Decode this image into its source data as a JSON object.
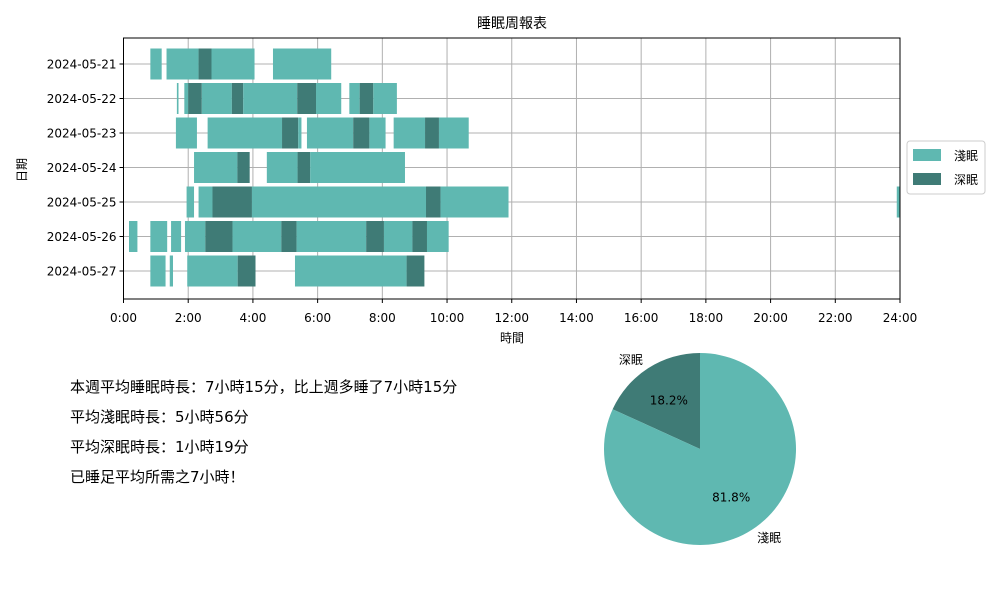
{
  "chart_data": [
    {
      "type": "timeline",
      "title": "睡眠周報表",
      "xlabel": "時間",
      "ylabel": "日期",
      "xlim": [
        0,
        24
      ],
      "x_ticks": [
        "0:00",
        "2:00",
        "4:00",
        "6:00",
        "8:00",
        "10:00",
        "12:00",
        "14:00",
        "16:00",
        "18:00",
        "20:00",
        "22:00",
        "24:00"
      ],
      "grid": true,
      "legend": {
        "position": "right",
        "items": [
          {
            "name": "淺眠",
            "color": "#5fb8b1"
          },
          {
            "name": "深眠",
            "color": "#3f7b76"
          }
        ]
      },
      "categories": [
        "2024-05-21",
        "2024-05-22",
        "2024-05-23",
        "2024-05-24",
        "2024-05-25",
        "2024-05-26",
        "2024-05-27"
      ],
      "rows": [
        {
          "date": "2024-05-21",
          "segments": [
            {
              "type": "淺眠",
              "start": 0.83,
              "end": 1.18
            },
            {
              "type": "淺眠",
              "start": 1.33,
              "end": 2.32
            },
            {
              "type": "深眠",
              "start": 2.32,
              "end": 2.72
            },
            {
              "type": "淺眠",
              "start": 2.72,
              "end": 4.05
            },
            {
              "type": "淺眠",
              "start": 4.62,
              "end": 6.42
            }
          ]
        },
        {
          "date": "2024-05-22",
          "segments": [
            {
              "type": "淺眠",
              "start": 1.65,
              "end": 1.7
            },
            {
              "type": "淺眠",
              "start": 1.88,
              "end": 2.0
            },
            {
              "type": "深眠",
              "start": 2.0,
              "end": 2.42
            },
            {
              "type": "淺眠",
              "start": 2.42,
              "end": 3.35
            },
            {
              "type": "深眠",
              "start": 3.35,
              "end": 3.7
            },
            {
              "type": "淺眠",
              "start": 3.7,
              "end": 5.37
            },
            {
              "type": "深眠",
              "start": 5.37,
              "end": 5.95
            },
            {
              "type": "淺眠",
              "start": 5.95,
              "end": 6.73
            },
            {
              "type": "淺眠",
              "start": 6.98,
              "end": 7.3
            },
            {
              "type": "深眠",
              "start": 7.3,
              "end": 7.72
            },
            {
              "type": "淺眠",
              "start": 7.72,
              "end": 8.45
            }
          ]
        },
        {
          "date": "2024-05-23",
          "segments": [
            {
              "type": "淺眠",
              "start": 1.62,
              "end": 2.27
            },
            {
              "type": "淺眠",
              "start": 2.6,
              "end": 4.9
            },
            {
              "type": "深眠",
              "start": 4.9,
              "end": 5.4
            },
            {
              "type": "淺眠",
              "start": 5.4,
              "end": 5.5
            },
            {
              "type": "淺眠",
              "start": 5.67,
              "end": 7.1
            },
            {
              "type": "深眠",
              "start": 7.1,
              "end": 7.6
            },
            {
              "type": "淺眠",
              "start": 7.6,
              "end": 8.1
            },
            {
              "type": "淺眠",
              "start": 8.35,
              "end": 9.32
            },
            {
              "type": "深眠",
              "start": 9.32,
              "end": 9.75
            },
            {
              "type": "淺眠",
              "start": 9.75,
              "end": 10.67
            }
          ]
        },
        {
          "date": "2024-05-24",
          "segments": [
            {
              "type": "淺眠",
              "start": 2.18,
              "end": 3.52
            },
            {
              "type": "深眠",
              "start": 3.52,
              "end": 3.9
            },
            {
              "type": "淺眠",
              "start": 4.43,
              "end": 5.38
            },
            {
              "type": "深眠",
              "start": 5.38,
              "end": 5.77
            },
            {
              "type": "淺眠",
              "start": 5.77,
              "end": 8.7
            }
          ]
        },
        {
          "date": "2024-05-25",
          "segments": [
            {
              "type": "淺眠",
              "start": 1.95,
              "end": 2.18
            },
            {
              "type": "淺眠",
              "start": 2.32,
              "end": 2.75
            },
            {
              "type": "深眠",
              "start": 2.75,
              "end": 3.97
            },
            {
              "type": "淺眠",
              "start": 3.97,
              "end": 9.35
            },
            {
              "type": "深眠",
              "start": 9.35,
              "end": 9.8
            },
            {
              "type": "淺眠",
              "start": 9.8,
              "end": 11.9
            },
            {
              "type": "淺眠",
              "start": 23.9,
              "end": 24.0
            }
          ]
        },
        {
          "date": "2024-05-26",
          "segments": [
            {
              "type": "淺眠",
              "start": 0.17,
              "end": 0.43
            },
            {
              "type": "淺眠",
              "start": 0.83,
              "end": 1.35
            },
            {
              "type": "淺眠",
              "start": 1.47,
              "end": 1.78
            },
            {
              "type": "淺眠",
              "start": 1.9,
              "end": 2.53
            },
            {
              "type": "深眠",
              "start": 2.53,
              "end": 3.37
            },
            {
              "type": "淺眠",
              "start": 3.37,
              "end": 4.88
            },
            {
              "type": "深眠",
              "start": 4.88,
              "end": 5.35
            },
            {
              "type": "淺眠",
              "start": 5.35,
              "end": 7.5
            },
            {
              "type": "深眠",
              "start": 7.5,
              "end": 8.05
            },
            {
              "type": "淺眠",
              "start": 8.05,
              "end": 8.93
            },
            {
              "type": "深眠",
              "start": 8.93,
              "end": 9.38
            },
            {
              "type": "淺眠",
              "start": 9.38,
              "end": 10.05
            }
          ]
        },
        {
          "date": "2024-05-27",
          "segments": [
            {
              "type": "淺眠",
              "start": 0.83,
              "end": 1.3
            },
            {
              "type": "淺眠",
              "start": 1.43,
              "end": 1.53
            },
            {
              "type": "淺眠",
              "start": 1.97,
              "end": 3.53
            },
            {
              "type": "深眠",
              "start": 3.53,
              "end": 4.08
            },
            {
              "type": "淺眠",
              "start": 5.3,
              "end": 8.75
            },
            {
              "type": "深眠",
              "start": 8.75,
              "end": 9.3
            }
          ]
        }
      ]
    },
    {
      "type": "pie",
      "start_angle_deg": 90,
      "slices": [
        {
          "name": "深眠",
          "value": 18.2,
          "label": "18.2%",
          "color": "#3f7b76"
        },
        {
          "name": "淺眠",
          "value": 81.8,
          "label": "81.8%",
          "color": "#5fb8b1"
        }
      ]
    }
  ],
  "summary": {
    "line1": "本週平均睡眠時長：7小時15分，比上週多睡了7小時15分",
    "line2": "平均淺眠時長：5小時56分",
    "line3": "平均深眠時長：1小時19分",
    "line4": "已睡足平均所需之7小時！"
  }
}
